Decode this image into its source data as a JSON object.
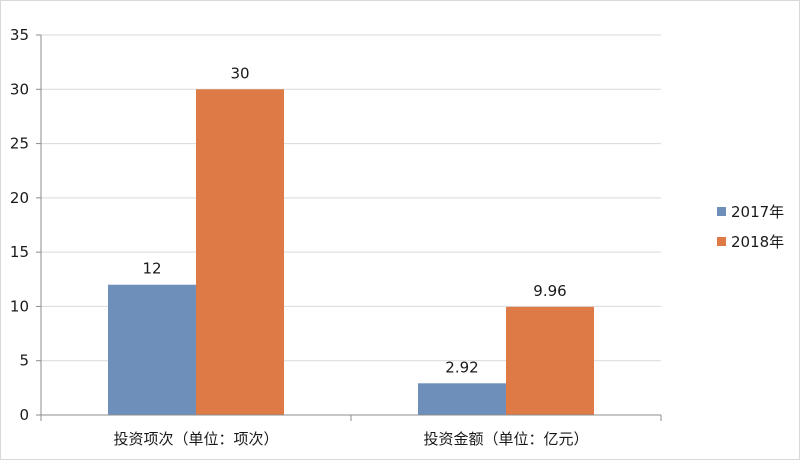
{
  "chart_data": {
    "type": "bar",
    "title": "",
    "xlabel": "",
    "ylabel": "",
    "categories": [
      "投资项次（单位：项次）",
      "投资金额（单位：亿元）"
    ],
    "series": [
      {
        "name": "2017年",
        "values": [
          12,
          2.92
        ],
        "color": "#6d8fba",
        "labels": [
          "12",
          "2.92"
        ]
      },
      {
        "name": "2018年",
        "values": [
          30,
          9.96
        ],
        "color": "#dd7a45",
        "labels": [
          "30",
          "9.96"
        ]
      }
    ],
    "ylim": [
      0,
      35
    ],
    "yticks": [
      "0",
      "5",
      "10",
      "15",
      "20",
      "25",
      "30",
      "35"
    ],
    "grid": true,
    "legend_position": "right"
  }
}
